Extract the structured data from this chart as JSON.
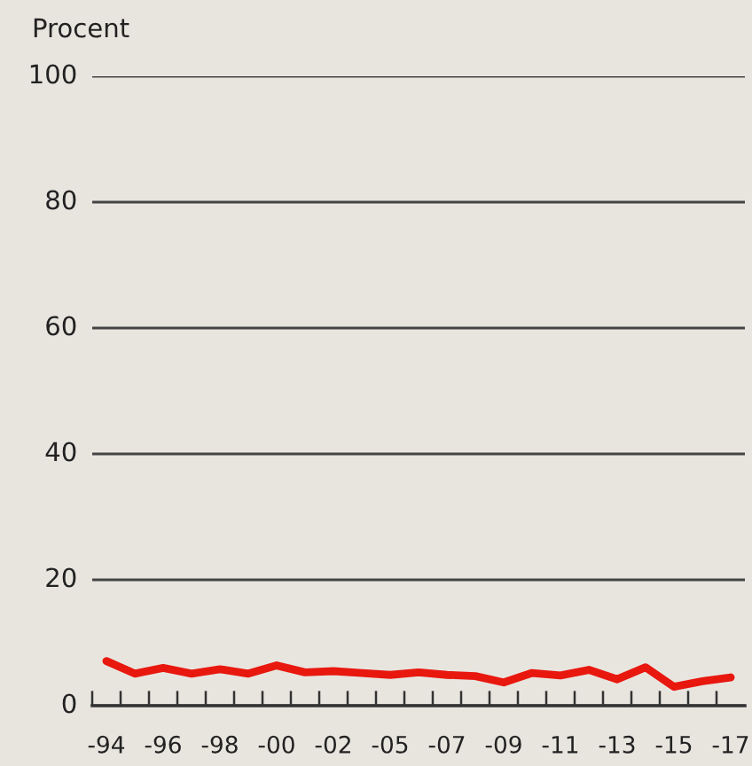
{
  "chart_data": {
    "type": "line",
    "ylabel": "Procent",
    "categories": [
      "-94",
      null,
      "-96",
      null,
      "-98",
      null,
      "-00",
      null,
      "-02",
      null,
      "-05",
      null,
      "-07",
      null,
      "-09",
      null,
      "-11",
      null,
      "-13",
      null,
      "-15",
      null,
      "-17"
    ],
    "series": [
      {
        "color": "#e8180f",
        "values": [
          7.1,
          5.1,
          6.0,
          5.1,
          5.8,
          5.1,
          6.4,
          5.3,
          5.5,
          5.2,
          4.9,
          5.3,
          4.9,
          4.7,
          3.7,
          5.2,
          4.8,
          5.7,
          4.2,
          6.1,
          3.0,
          3.9,
          4.5
        ]
      }
    ],
    "ylim": [
      0,
      100
    ],
    "yticks": [
      0,
      20,
      40,
      60,
      80,
      100
    ],
    "grid": "y",
    "marker": "none",
    "line_style": "solid"
  }
}
